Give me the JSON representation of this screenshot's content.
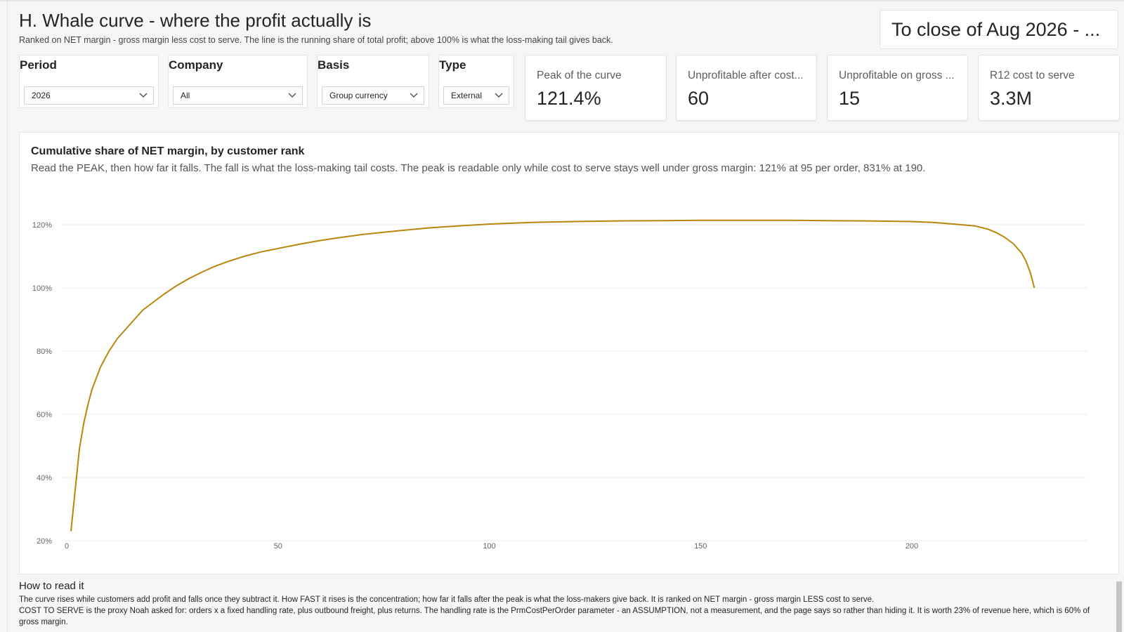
{
  "header": {
    "title": "H. Whale curve - where the profit actually is",
    "subtitle": "Ranked on NET margin - gross margin less cost to serve. The line is the running share of total profit; above 100% is what the loss-making tail gives back."
  },
  "date_card": {
    "text": "To close of Aug 2026 - ..."
  },
  "slicers": [
    {
      "title": "Period",
      "value": "2026"
    },
    {
      "title": "Company",
      "value": "All"
    },
    {
      "title": "Basis",
      "value": "Group currency"
    },
    {
      "title": "Type",
      "value": "External"
    }
  ],
  "kpis": [
    {
      "label": "Peak of the curve",
      "value": "121.4%"
    },
    {
      "label": "Unprofitable after cost...",
      "value": "60"
    },
    {
      "label": "Unprofitable on gross ...",
      "value": "15"
    },
    {
      "label": "R12 cost to serve",
      "value": "3.3M"
    }
  ],
  "chart": {
    "title": "Cumulative share of NET margin, by customer rank",
    "subtitle": "Read the PEAK, then how far it falls. The fall is what the loss-making tail costs. The peak is readable only while cost to serve stays well under gross margin: 121% at 95 per order, 831% at 190."
  },
  "chart_data": {
    "type": "line",
    "title": "Cumulative share of NET margin, by customer rank",
    "xlabel": "",
    "ylabel": "",
    "xlim": [
      0,
      240
    ],
    "ylim": [
      20,
      120
    ],
    "x_ticks": [
      "0",
      "50",
      "100",
      "150",
      "200"
    ],
    "y_ticks": [
      "20%",
      "40%",
      "60%",
      "80%",
      "100%",
      "120%"
    ],
    "grid": true,
    "color": "#b8860b",
    "series": [
      {
        "x": [
          1,
          2,
          3,
          4,
          5,
          6,
          7,
          8,
          10,
          12,
          14,
          16,
          18,
          20,
          23,
          26,
          29,
          32,
          35,
          38,
          42,
          46,
          50,
          55,
          60,
          65,
          70,
          75,
          80,
          85,
          90,
          95,
          100,
          110,
          120,
          130,
          140,
          150,
          160,
          170,
          180,
          190,
          200,
          205,
          210,
          215,
          218,
          220,
          222,
          224,
          226,
          227,
          228,
          228.5,
          229
        ],
        "y": [
          23,
          36,
          49,
          57,
          63,
          68,
          71.5,
          75,
          80,
          84,
          87,
          90,
          93,
          95,
          98,
          100.7,
          103,
          105,
          106.8,
          108.3,
          110,
          111.4,
          112.5,
          113.8,
          115,
          116,
          116.9,
          117.6,
          118.3,
          118.9,
          119.4,
          119.8,
          120.2,
          120.7,
          121,
          121.2,
          121.3,
          121.4,
          121.4,
          121.4,
          121.3,
          121.2,
          121,
          120.7,
          120.2,
          119.6,
          118.6,
          117.5,
          116,
          114,
          111,
          108.5,
          105,
          102.5,
          100
        ]
      }
    ]
  },
  "notes": {
    "heading": "How to read it",
    "line1": "The curve rises while customers add profit and falls once they subtract it. How FAST it rises is the concentration; how far it falls after the peak is what the loss-makers give back. It is ranked on NET margin - gross margin LESS cost to serve.",
    "line2": "COST TO SERVE is the proxy Noah asked for: orders x a fixed handling rate, plus outbound freight, plus returns. The handling rate is the PrmCostPerOrder parameter - an ASSUMPTION, not a measurement, and the page says so rather than hiding it. It is worth 23% of revenue here, which is 60% of gross margin."
  }
}
